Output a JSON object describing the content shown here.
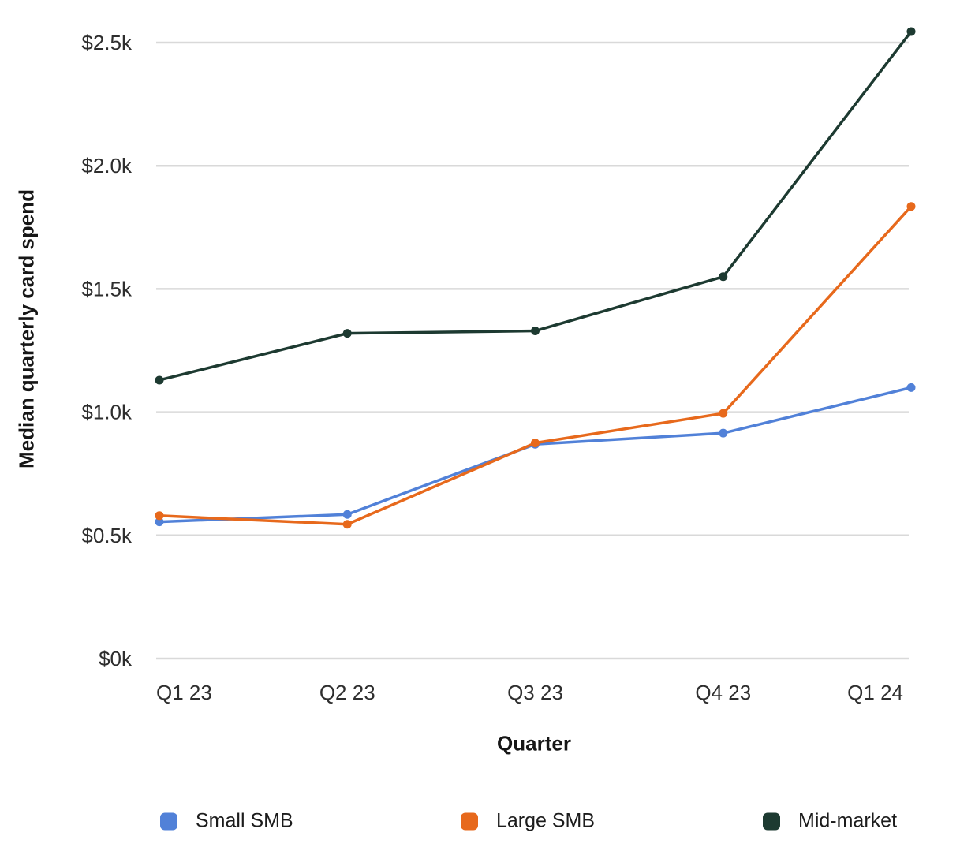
{
  "chart_data": {
    "type": "line",
    "categories": [
      "Q1 23",
      "Q2 23",
      "Q3 23",
      "Q4 23",
      "Q1 24"
    ],
    "series": [
      {
        "name": "Small SMB",
        "color": "#5181d8",
        "values": [
          555,
          585,
          870,
          915,
          1100
        ]
      },
      {
        "name": "Large SMB",
        "color": "#e7691c",
        "values": [
          580,
          545,
          875,
          995,
          1835
        ]
      },
      {
        "name": "Mid-market",
        "color": "#1d3a31",
        "values": [
          1130,
          1320,
          1330,
          1550,
          2545
        ]
      }
    ],
    "xlabel": "Quarter",
    "ylabel": "Median quarterly card spend",
    "y_ticks": [
      {
        "value": 0,
        "label": "$0k"
      },
      {
        "value": 500,
        "label": "$0.5k"
      },
      {
        "value": 1000,
        "label": "$1.0k"
      },
      {
        "value": 1500,
        "label": "$1.5k"
      },
      {
        "value": 2000,
        "label": "$2.0k"
      },
      {
        "value": 2500,
        "label": "$2.5k"
      }
    ],
    "ylim": [
      0,
      2600
    ],
    "grid": "horizontal-only",
    "legend_position": "bottom"
  },
  "colors": {
    "background": "#ffffff",
    "gridline": "#d9d9d9",
    "tick_text": "#2e2e2e",
    "axis_title_text": "#161616",
    "legend_text": "#1c1c1c"
  }
}
